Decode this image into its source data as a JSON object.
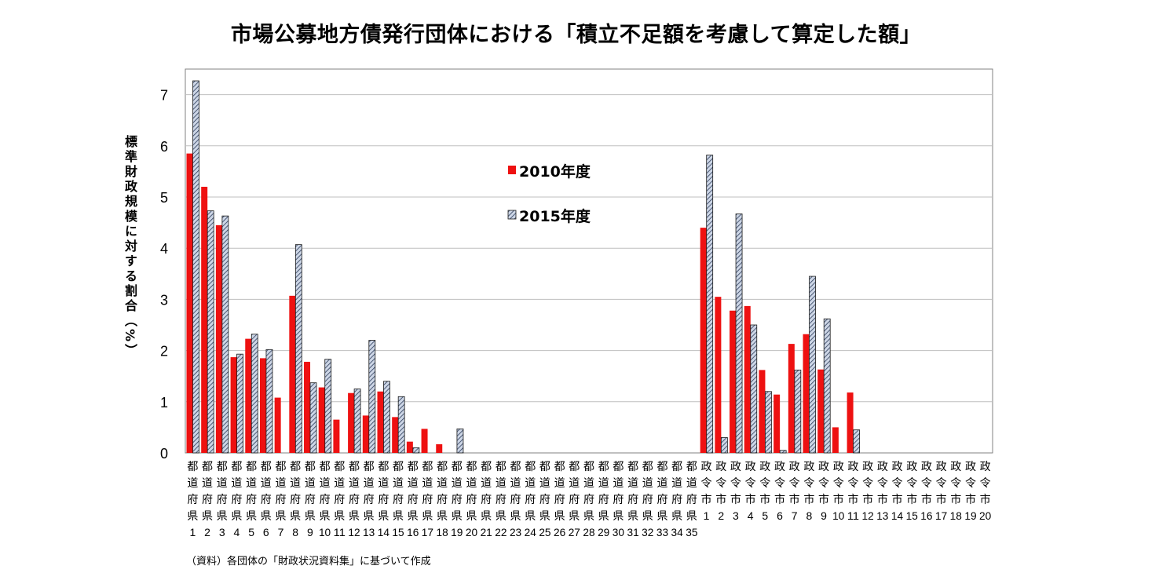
{
  "title": "市場公募地方債発行団体における「積立不足額を考慮して算定した額」",
  "source_note": "（資料）各団体の「財政状況資料集」に基づいて作成",
  "colors": {
    "series_2010": "#ee1111",
    "series_2015_fill": "#cdd6e6",
    "series_2015_hatch": "#2a3a58",
    "grid": "#bfbfbf",
    "axis": "#808080"
  },
  "chart_data": {
    "type": "bar",
    "ylabel": "標準財政規模に対する割合（%）",
    "xlabel": "",
    "ylim": [
      0,
      7.5
    ],
    "yticks": [
      0,
      1,
      2,
      3,
      4,
      5,
      6,
      7
    ],
    "grid": true,
    "legend_position": "center-upper",
    "categories": [
      "都道府県1",
      "都道府県2",
      "都道府県3",
      "都道府県4",
      "都道府県5",
      "都道府県6",
      "都道府県7",
      "都道府県8",
      "都道府県9",
      "都道府県10",
      "都道府県11",
      "都道府県12",
      "都道府県13",
      "都道府県14",
      "都道府県15",
      "都道府県16",
      "都道府県17",
      "都道府県18",
      "都道府県19",
      "都道府県20",
      "都道府県21",
      "都道府県22",
      "都道府県23",
      "都道府県24",
      "都道府県25",
      "都道府県26",
      "都道府県27",
      "都道府県28",
      "都道府県29",
      "都道府県30",
      "都道府県31",
      "都道府県32",
      "都道府県33",
      "都道府県34",
      "都道府県35",
      "政令市1",
      "政令市2",
      "政令市3",
      "政令市4",
      "政令市5",
      "政令市6",
      "政令市7",
      "政令市8",
      "政令市9",
      "政令市10",
      "政令市11",
      "政令市12",
      "政令市13",
      "政令市14",
      "政令市15",
      "政令市16",
      "政令市17",
      "政令市18",
      "政令市19",
      "政令市20"
    ],
    "tick_label_rows": {
      "prefix_pref": [
        "都",
        "道",
        "府",
        "県"
      ],
      "prefix_city": [
        "政",
        "令",
        "市"
      ],
      "numbers": [
        "1",
        "2",
        "3",
        "4",
        "5",
        "6",
        "7",
        "8",
        "9",
        "10",
        "11",
        "12",
        "13",
        "14",
        "15",
        "16",
        "17",
        "18",
        "19",
        "20",
        "21",
        "22",
        "23",
        "24",
        "25",
        "26",
        "27",
        "28",
        "29",
        "30",
        "31",
        "32",
        "33",
        "34",
        "35",
        "1",
        "2",
        "3",
        "4",
        "5",
        "6",
        "7",
        "8",
        "9",
        "10",
        "11",
        "12",
        "13",
        "14",
        "15",
        "16",
        "17",
        "18",
        "19",
        "20"
      ]
    },
    "series": [
      {
        "name": "2010年度",
        "values": [
          5.85,
          5.2,
          4.45,
          1.87,
          2.23,
          1.85,
          1.08,
          3.07,
          1.78,
          1.28,
          0.65,
          1.17,
          0.73,
          1.2,
          0.7,
          0.22,
          0.47,
          0.17,
          0,
          0,
          0,
          0,
          0,
          0,
          0,
          0,
          0,
          0,
          0,
          0,
          0,
          0,
          0,
          0,
          0,
          4.4,
          3.05,
          2.78,
          2.87,
          1.62,
          1.14,
          2.13,
          2.32,
          1.63,
          0.5,
          1.18,
          0,
          0,
          0,
          0,
          0,
          0,
          0,
          0,
          0
        ]
      },
      {
        "name": "2015年度",
        "values": [
          7.27,
          4.73,
          4.63,
          1.93,
          2.32,
          2.02,
          0,
          4.07,
          1.37,
          1.83,
          0,
          1.25,
          2.2,
          1.4,
          1.1,
          0.1,
          0,
          0,
          0.47,
          0,
          0,
          0,
          0,
          0,
          0,
          0,
          0,
          0,
          0,
          0,
          0,
          0,
          0,
          0,
          0,
          5.82,
          0.3,
          4.67,
          2.5,
          1.2,
          0.05,
          1.62,
          3.45,
          2.62,
          0,
          0.45,
          0,
          0,
          0,
          0,
          0,
          0,
          0,
          0,
          0
        ]
      }
    ]
  }
}
